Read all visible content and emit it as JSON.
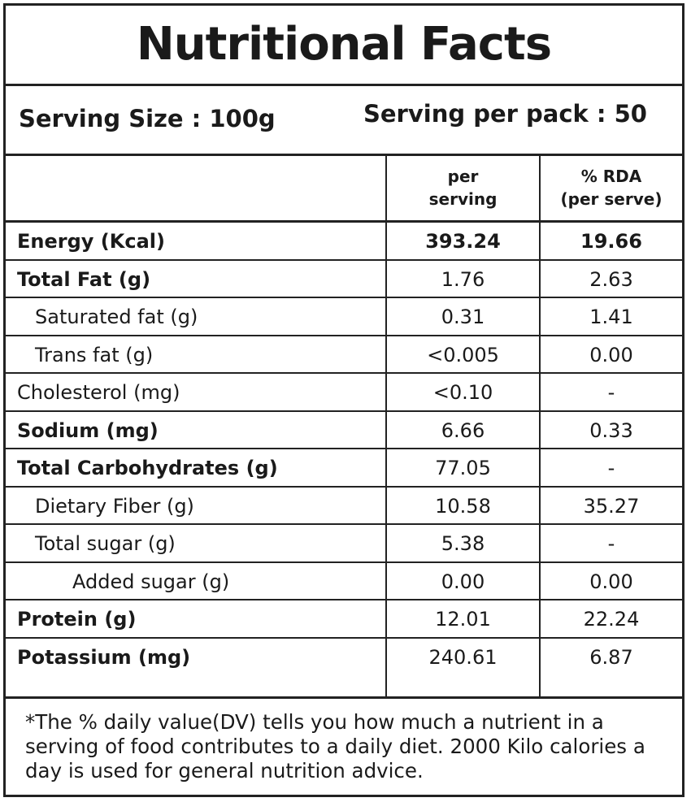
{
  "title": "Nutritional Facts",
  "serving": {
    "size": "Serving Size : 100g",
    "per_pack": "Serving per pack : 50"
  },
  "headers": {
    "per_serving": "per\nserving",
    "rda": "% RDA\n(per serve)"
  },
  "rows": [
    {
      "name": "Energy (Kcal)",
      "per_serving": "393.24",
      "rda": "19.66",
      "bold": true,
      "indent": 0
    },
    {
      "name": "Total Fat (g)",
      "per_serving": "1.76",
      "rda": "2.63",
      "bold_name": true,
      "indent": 0
    },
    {
      "name": "Saturated fat (g)",
      "per_serving": "0.31",
      "rda": "1.41",
      "indent": 1
    },
    {
      "name": "Trans fat (g)",
      "per_serving": "<0.005",
      "rda": "0.00",
      "indent": 1
    },
    {
      "name": "Cholesterol (mg)",
      "per_serving": "<0.10",
      "rda": "-",
      "indent": 0
    },
    {
      "name": "Sodium (mg)",
      "per_serving": "6.66",
      "rda": "0.33",
      "bold_name": true,
      "indent": 0
    },
    {
      "name": "Total Carbohydrates (g)",
      "per_serving": "77.05",
      "rda": "-",
      "bold_name": true,
      "indent": 0
    },
    {
      "name": "Dietary Fiber (g)",
      "per_serving": "10.58",
      "rda": "35.27",
      "indent": 1
    },
    {
      "name": "Total sugar (g)",
      "per_serving": "5.38",
      "rda": "-",
      "indent": 1
    },
    {
      "name": "Added sugar (g)",
      "per_serving": "0.00",
      "rda": "0.00",
      "indent": 2
    },
    {
      "name": "Protein (g)",
      "per_serving": "12.01",
      "rda": "22.24",
      "bold_name": true,
      "indent": 0
    },
    {
      "name": "Potassium (mg)",
      "per_serving": "240.61",
      "rda": "6.87",
      "bold_name": true,
      "indent": 0
    }
  ],
  "footnote": "*The % daily value(DV) tells you how much a nutrient in a serving of food contributes to a daily diet. 2000 Kilo calories a day is used for general nutrition advice."
}
